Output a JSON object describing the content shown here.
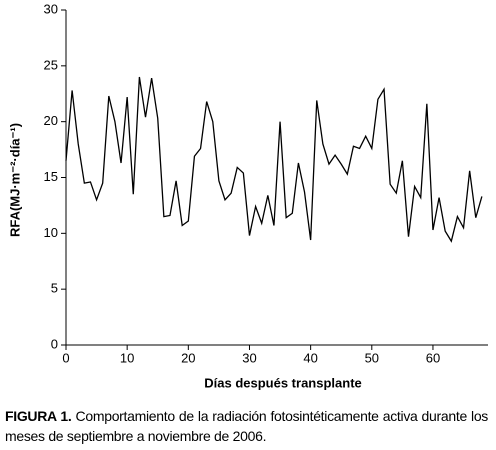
{
  "chart_data": {
    "type": "line",
    "xlabel": "Días después transplante",
    "ylabel": "RFA(MJ·m⁻²·día⁻¹)",
    "x": [
      0,
      1,
      2,
      3,
      4,
      5,
      6,
      7,
      8,
      9,
      10,
      11,
      12,
      13,
      14,
      15,
      16,
      17,
      18,
      19,
      20,
      21,
      22,
      23,
      24,
      25,
      26,
      27,
      28,
      29,
      30,
      31,
      32,
      33,
      34,
      35,
      36,
      37,
      38,
      39,
      40,
      41,
      42,
      43,
      44,
      45,
      46,
      47,
      48,
      49,
      50,
      51,
      52,
      53,
      54,
      55,
      56,
      57,
      58,
      59,
      60,
      61,
      62,
      63,
      64,
      65,
      66,
      67,
      68
    ],
    "values": [
      16.5,
      22.8,
      18,
      14.5,
      14.6,
      13,
      14.5,
      22.3,
      20,
      16.3,
      22.2,
      13.5,
      24,
      20.4,
      23.9,
      20.3,
      11.5,
      11.6,
      14.7,
      10.7,
      11.1,
      16.9,
      17.6,
      21.8,
      20,
      14.7,
      13,
      13.6,
      15.9,
      15.4,
      9.8,
      12.4,
      10.9,
      13.4,
      10.7,
      20,
      11.4,
      11.8,
      16.3,
      13.7,
      9.4,
      21.9,
      18,
      16.2,
      17,
      16.2,
      15.3,
      17.8,
      17.6,
      18.7,
      17.6,
      22,
      22.9,
      14.4,
      13.6,
      16.5,
      9.7,
      14.2,
      13.2,
      21.6,
      10.3,
      13.2,
      10.2,
      9.3,
      11.5,
      10.5,
      15.6,
      11.4,
      13.3
    ],
    "color": "#000000",
    "xlim": [
      0,
      69
    ],
    "xticks": [
      0,
      10,
      20,
      30,
      40,
      50,
      60
    ],
    "ylim": [
      0,
      30
    ],
    "yticks": [
      0,
      5,
      10,
      15,
      20,
      25,
      30
    ],
    "grid": false
  },
  "caption": {
    "label": "FIGURA 1.",
    "text": "Comportamiento de la radiación fotosintéticamente activa durante los meses de septiembre a noviembre de 2006."
  }
}
